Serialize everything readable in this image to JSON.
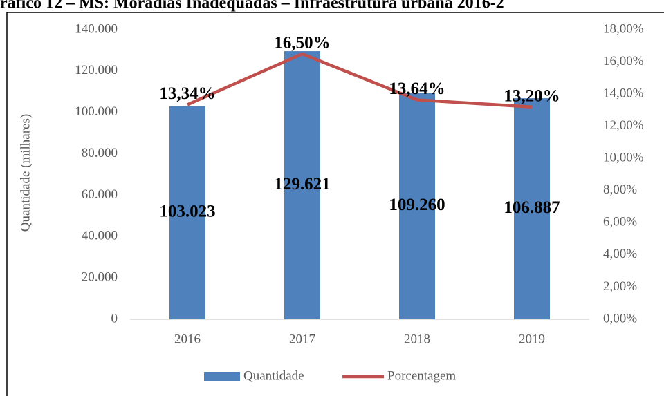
{
  "chart_data": {
    "type": "bar",
    "title": "ráfico 12 – MS: Moradias Inadequadas – Infraestrutura urbana 2016-2",
    "y_label": "Quantidade (milhares)",
    "categories": [
      "2016",
      "2017",
      "2018",
      "2019"
    ],
    "series": [
      {
        "name": "Quantidade",
        "type": "bar",
        "color": "#4f81bd",
        "values": [
          103023,
          129621,
          109260,
          106887
        ],
        "value_labels": [
          "103.023",
          "129.621",
          "109.260",
          "106.887"
        ]
      },
      {
        "name": "Porcentagem",
        "type": "line",
        "axis": "y2",
        "color": "#c0504d",
        "values": [
          13.34,
          16.5,
          13.64,
          13.2
        ],
        "value_labels": [
          "13,34%",
          "16,50%",
          "13,64%",
          "13,20%"
        ]
      }
    ],
    "ylim": [
      0,
      140000
    ],
    "yticks": [
      0,
      {
        "value": 20000,
        "label": "20.000"
      },
      {
        "value": 40000,
        "label": "40.000"
      },
      {
        "value": 60000,
        "label": "60.000"
      },
      {
        "value": 80000,
        "label": "80.000"
      },
      {
        "value": 100000,
        "label": "100.000"
      },
      {
        "value": 120000,
        "label": "120.000"
      },
      {
        "value": 140000,
        "label": "140.000"
      }
    ],
    "y2lim": [
      0,
      18
    ],
    "y2ticks": [
      {
        "value": 0,
        "label": "0,00%"
      },
      {
        "value": 2,
        "label": "2,00%"
      },
      {
        "value": 4,
        "label": "4,00%"
      },
      {
        "value": 6,
        "label": "6,00%"
      },
      {
        "value": 8,
        "label": "8,00%"
      },
      {
        "value": 10,
        "label": "10,00%"
      },
      {
        "value": 12,
        "label": "12,00%"
      },
      {
        "value": 14,
        "label": "14,00%"
      },
      {
        "value": 16,
        "label": "16,00%"
      },
      {
        "value": 18,
        "label": "18,00%"
      }
    ],
    "grid": false,
    "legend": "bottom"
  }
}
